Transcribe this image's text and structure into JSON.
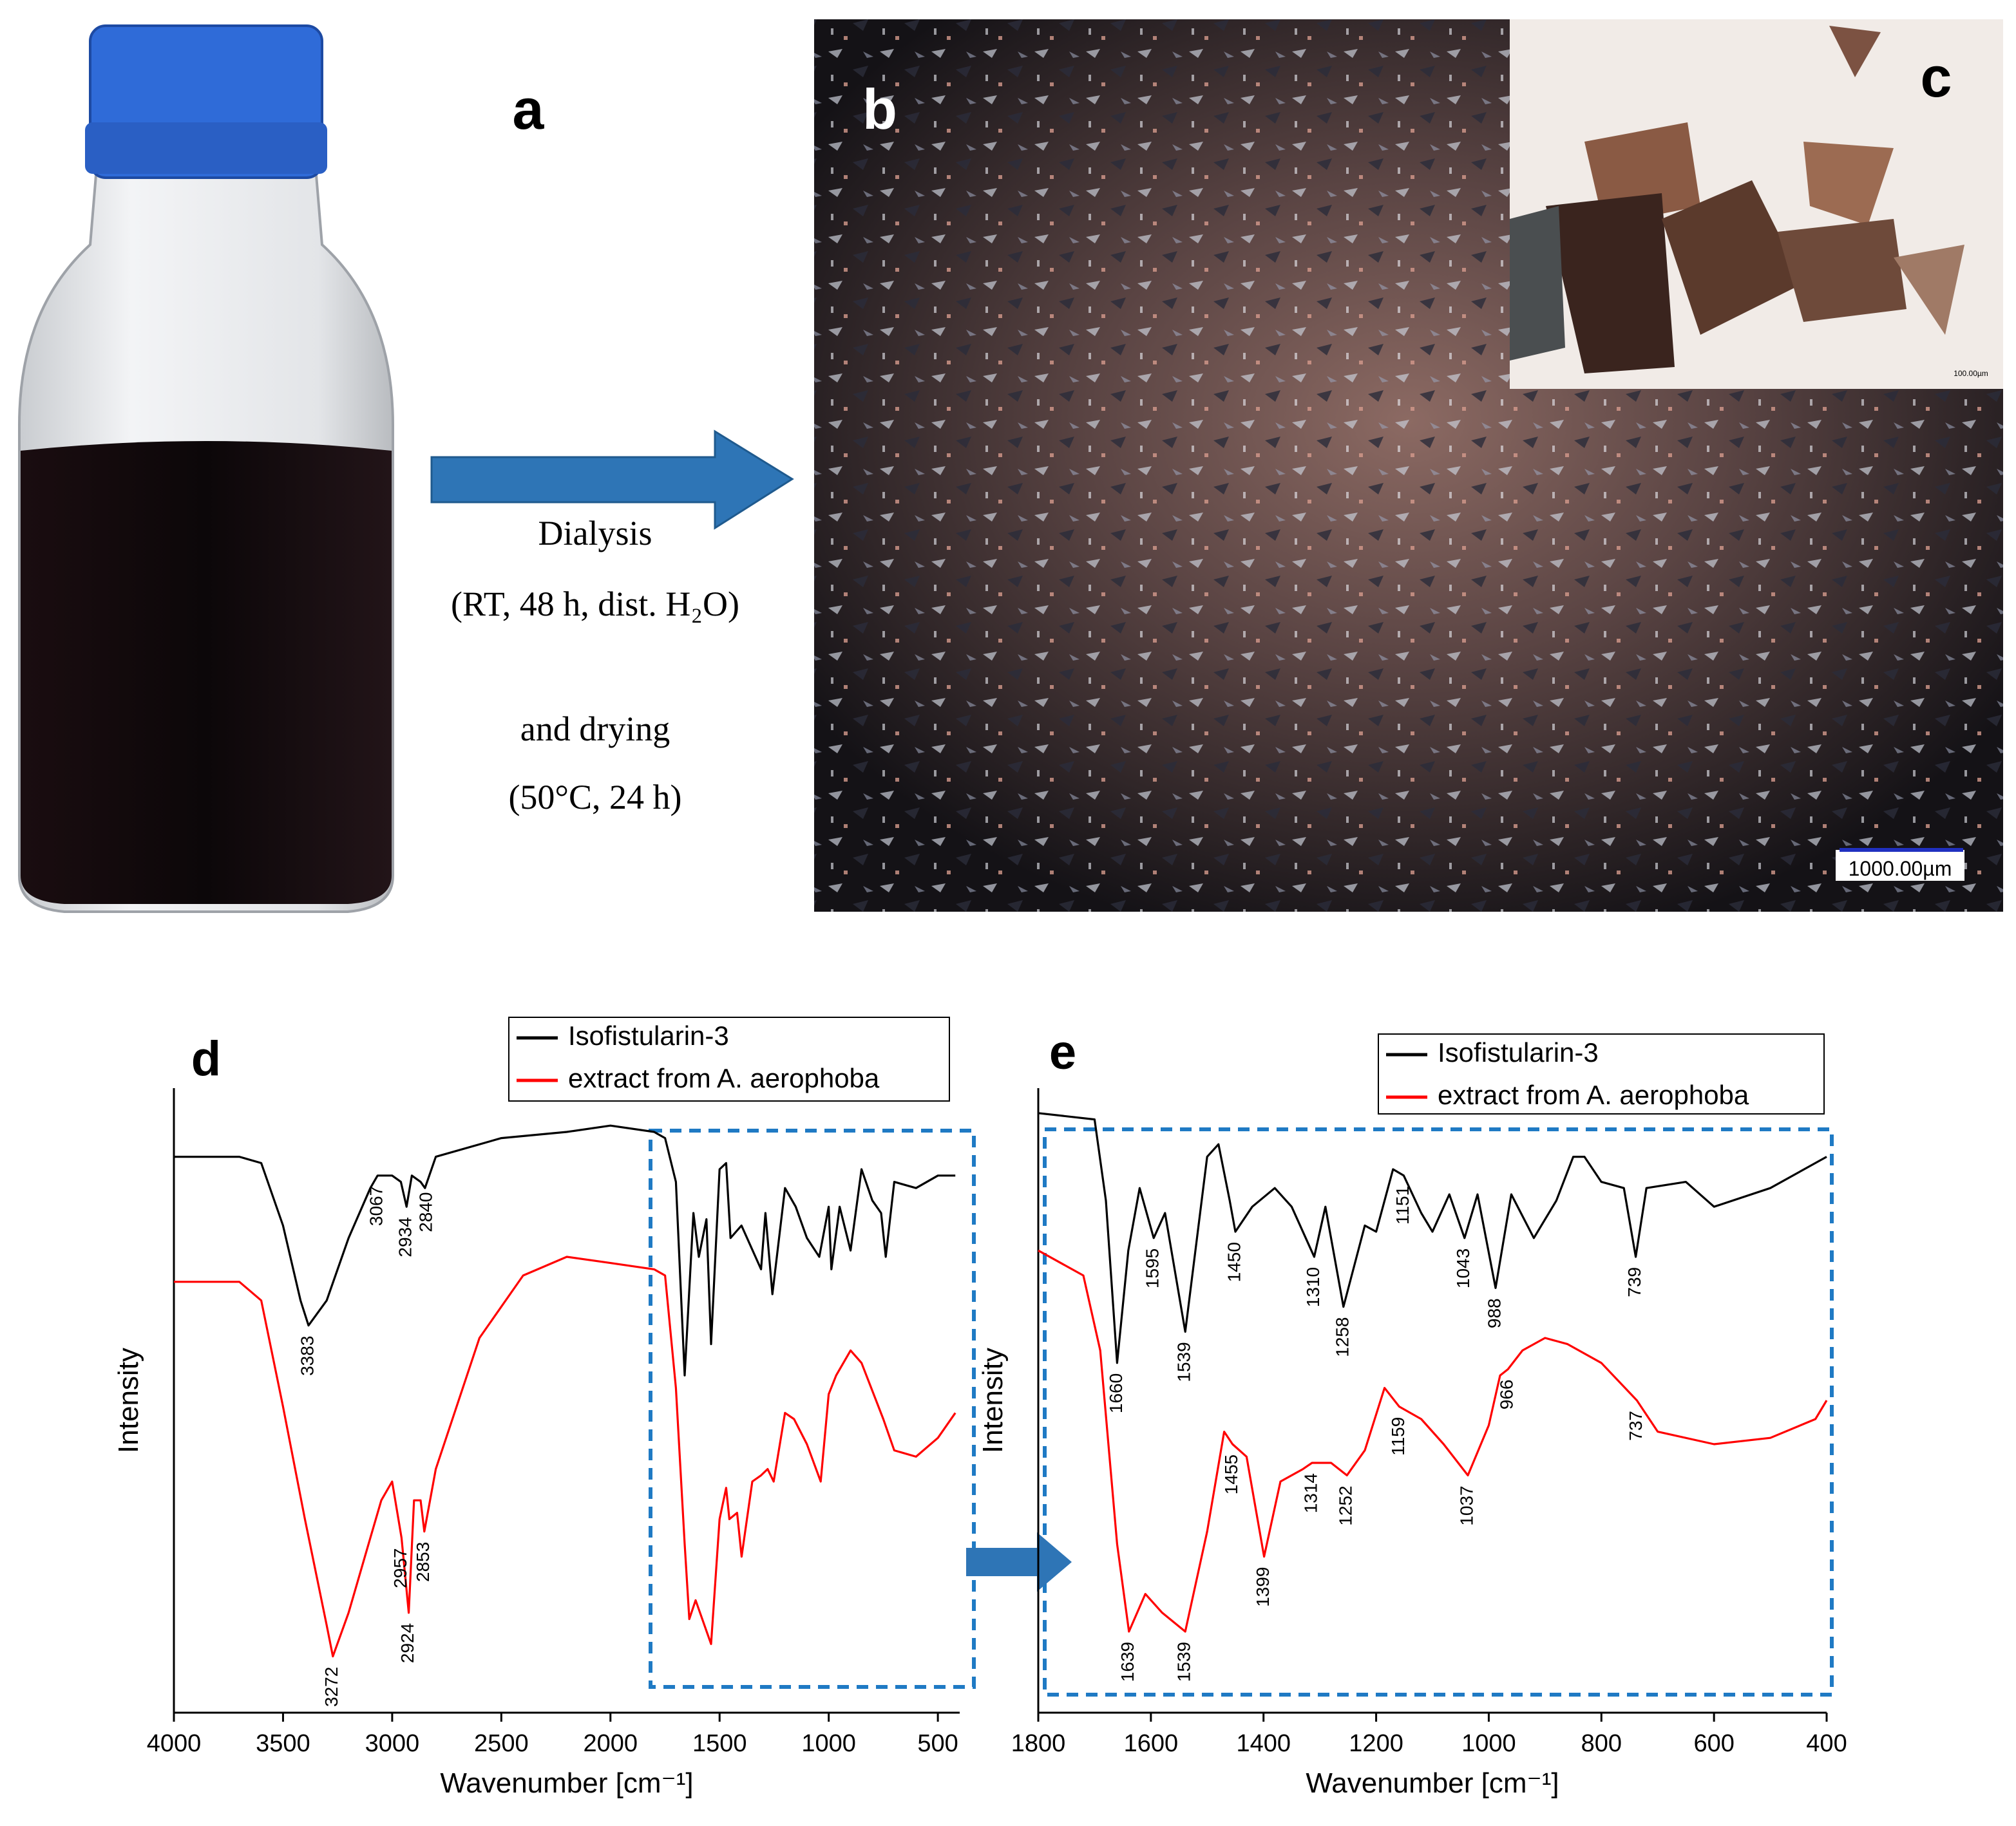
{
  "panels": {
    "a": "a",
    "b": "b",
    "c": "c"
  },
  "process": [
    "Dialysis",
    "(RT, 48 h, dist. H₂O)",
    "and drying",
    "(50°C, 24 h)"
  ],
  "scale_bars": [
    "1000.00µm",
    "100.00µm"
  ],
  "chart_data": [
    {
      "type": "line",
      "panel_label": "d",
      "x_label": "Wavenumber [cm⁻¹]",
      "y_label": "Intensity",
      "xlim": [
        4000,
        400
      ],
      "xticks": [
        4000,
        3500,
        3000,
        2500,
        2000,
        1500,
        1000,
        500
      ],
      "ylim": [
        0,
        100
      ],
      "series": [
        {
          "name": "Isofistularin-3",
          "color": "#000000",
          "peaks": [
            3383,
            3067,
            2934,
            2840
          ],
          "x": [
            4000,
            3700,
            3600,
            3500,
            3420,
            3383,
            3300,
            3200,
            3100,
            3067,
            3000,
            2960,
            2934,
            2910,
            2870,
            2850,
            2800,
            2500,
            2200,
            2000,
            1800,
            1750,
            1700,
            1660,
            1620,
            1595,
            1560,
            1539,
            1500,
            1470,
            1450,
            1400,
            1310,
            1290,
            1258,
            1200,
            1151,
            1100,
            1043,
            1000,
            988,
            950,
            900,
            850,
            800,
            760,
            739,
            700,
            600,
            500,
            420
          ],
          "values": [
            89,
            89,
            88,
            78,
            66,
            62,
            66,
            76,
            84,
            86,
            86,
            85,
            81,
            86,
            85,
            84,
            89,
            92,
            93,
            94,
            93,
            92,
            85,
            54,
            80,
            73,
            79,
            59,
            87,
            88,
            76,
            78,
            71,
            80,
            67,
            84,
            81,
            76,
            73,
            81,
            71,
            81,
            74,
            87,
            82,
            80,
            73,
            85,
            84,
            86,
            86
          ]
        },
        {
          "name": "extract from A. aerophoba",
          "color": "#ff0000",
          "peaks": [
            3272,
            2957,
            2924,
            2853
          ],
          "x": [
            4000,
            3700,
            3600,
            3500,
            3400,
            3300,
            3272,
            3200,
            3100,
            3050,
            3000,
            2957,
            2924,
            2900,
            2870,
            2853,
            2800,
            2600,
            2400,
            2200,
            2000,
            1800,
            1750,
            1700,
            1660,
            1639,
            1610,
            1539,
            1500,
            1470,
            1455,
            1420,
            1399,
            1350,
            1310,
            1280,
            1252,
            1200,
            1159,
            1100,
            1037,
            1000,
            966,
            900,
            850,
            750,
            700,
            600,
            500,
            420
          ],
          "values": [
            69,
            69,
            66,
            49,
            31,
            14,
            9,
            16,
            28,
            34,
            37,
            28,
            16,
            34,
            34,
            29,
            39,
            60,
            70,
            73,
            72,
            71,
            70,
            52,
            27,
            15,
            18,
            11,
            31,
            36,
            31,
            32,
            25,
            37,
            38,
            39,
            37,
            48,
            47,
            43,
            37,
            51,
            54,
            58,
            56,
            47,
            42,
            41,
            44,
            48
          ]
        }
      ]
    },
    {
      "type": "line",
      "panel_label": "e",
      "x_label": "Wavenumber [cm⁻¹]",
      "y_label": "Intensity",
      "xlim": [
        1800,
        400
      ],
      "xticks": [
        1800,
        1600,
        1400,
        1200,
        1000,
        800,
        600,
        400
      ],
      "ylim": [
        0,
        100
      ],
      "series": [
        {
          "name": "Isofistularin-3",
          "color": "#000000",
          "peaks": [
            1660,
            1595,
            1539,
            1450,
            1310,
            1258,
            1151,
            1043,
            988,
            739
          ],
          "x": [
            1800,
            1700,
            1680,
            1660,
            1640,
            1620,
            1595,
            1575,
            1539,
            1500,
            1480,
            1460,
            1450,
            1420,
            1380,
            1350,
            1310,
            1290,
            1258,
            1220,
            1200,
            1170,
            1151,
            1120,
            1100,
            1070,
            1043,
            1020,
            988,
            960,
            920,
            880,
            850,
            830,
            800,
            760,
            739,
            720,
            650,
            600,
            500,
            400
          ],
          "values": [
            96,
            95,
            82,
            56,
            74,
            84,
            76,
            80,
            61,
            89,
            91,
            82,
            77,
            81,
            84,
            81,
            73,
            81,
            65,
            78,
            77,
            87,
            86,
            80,
            77,
            83,
            76,
            83,
            68,
            83,
            76,
            82,
            89,
            89,
            85,
            84,
            73,
            84,
            85,
            81,
            84,
            89
          ]
        },
        {
          "name": "extract from A. aerophoba",
          "color": "#ff0000",
          "peaks": [
            1639,
            1539,
            1455,
            1399,
            1314,
            1252,
            1159,
            1037,
            966,
            737
          ],
          "x": [
            1800,
            1720,
            1690,
            1660,
            1639,
            1610,
            1580,
            1539,
            1500,
            1470,
            1455,
            1430,
            1399,
            1370,
            1330,
            1314,
            1280,
            1252,
            1220,
            1185,
            1159,
            1120,
            1080,
            1037,
            1000,
            980,
            966,
            940,
            900,
            860,
            800,
            737,
            700,
            600,
            500,
            420,
            400
          ],
          "values": [
            74,
            70,
            58,
            27,
            13,
            19,
            16,
            13,
            29,
            45,
            43,
            41,
            25,
            37,
            39,
            40,
            40,
            38,
            42,
            52,
            49,
            47,
            43,
            38,
            46,
            54,
            55,
            58,
            60,
            59,
            56,
            50,
            45,
            43,
            44,
            47,
            50
          ]
        }
      ]
    }
  ]
}
